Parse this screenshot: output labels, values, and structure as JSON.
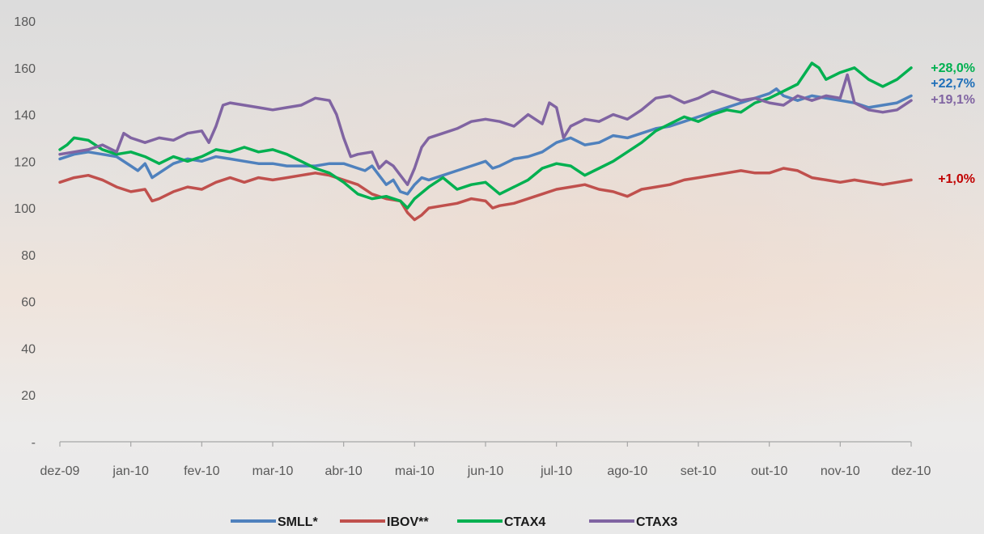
{
  "chart_data": {
    "type": "line",
    "x_labels": [
      "dez-09",
      "jan-10",
      "fev-10",
      "mar-10",
      "abr-10",
      "mai-10",
      "jun-10",
      "jul-10",
      "ago-10",
      "set-10",
      "out-10",
      "nov-10",
      "dez-10"
    ],
    "y_ticks": [
      "-",
      "20",
      "40",
      "60",
      "80",
      "100",
      "120",
      "140",
      "160",
      "180"
    ],
    "ylim": [
      0,
      180
    ],
    "grid": false,
    "legend_position": "bottom",
    "series": [
      {
        "name": "SMLL*",
        "color": "#4f81bd",
        "end_label": "+22,7%",
        "end_label_color": "#1f6fb8",
        "values": [
          [
            0,
            121
          ],
          [
            0.2,
            123
          ],
          [
            0.4,
            124
          ],
          [
            0.6,
            123
          ],
          [
            0.8,
            122
          ],
          [
            1.0,
            118
          ],
          [
            1.1,
            116
          ],
          [
            1.2,
            119
          ],
          [
            1.3,
            113
          ],
          [
            1.4,
            115
          ],
          [
            1.6,
            119
          ],
          [
            1.8,
            121
          ],
          [
            2.0,
            120
          ],
          [
            2.2,
            122
          ],
          [
            2.4,
            121
          ],
          [
            2.6,
            120
          ],
          [
            2.8,
            119
          ],
          [
            3.0,
            119
          ],
          [
            3.2,
            118
          ],
          [
            3.4,
            118
          ],
          [
            3.6,
            118
          ],
          [
            3.8,
            119
          ],
          [
            4.0,
            119
          ],
          [
            4.2,
            117
          ],
          [
            4.3,
            116
          ],
          [
            4.4,
            118
          ],
          [
            4.5,
            114
          ],
          [
            4.6,
            110
          ],
          [
            4.7,
            112
          ],
          [
            4.8,
            107
          ],
          [
            4.9,
            106
          ],
          [
            5.0,
            110
          ],
          [
            5.1,
            113
          ],
          [
            5.2,
            112
          ],
          [
            5.4,
            114
          ],
          [
            5.6,
            116
          ],
          [
            5.8,
            118
          ],
          [
            6.0,
            120
          ],
          [
            6.1,
            117
          ],
          [
            6.2,
            118
          ],
          [
            6.4,
            121
          ],
          [
            6.6,
            122
          ],
          [
            6.8,
            124
          ],
          [
            7.0,
            128
          ],
          [
            7.2,
            130
          ],
          [
            7.4,
            127
          ],
          [
            7.6,
            128
          ],
          [
            7.8,
            131
          ],
          [
            8.0,
            130
          ],
          [
            8.2,
            132
          ],
          [
            8.4,
            134
          ],
          [
            8.6,
            135
          ],
          [
            8.8,
            137
          ],
          [
            9.0,
            139
          ],
          [
            9.2,
            141
          ],
          [
            9.4,
            143
          ],
          [
            9.6,
            145
          ],
          [
            9.8,
            147
          ],
          [
            10.0,
            149
          ],
          [
            10.1,
            151
          ],
          [
            10.2,
            148
          ],
          [
            10.4,
            146
          ],
          [
            10.6,
            148
          ],
          [
            10.8,
            147
          ],
          [
            11.0,
            146
          ],
          [
            11.2,
            145
          ],
          [
            11.4,
            143
          ],
          [
            11.6,
            144
          ],
          [
            11.8,
            145
          ],
          [
            12.0,
            148
          ]
        ]
      },
      {
        "name": "IBOV**",
        "color": "#c0504d",
        "end_label": "+1,0%",
        "end_label_color": "#c00000",
        "values": [
          [
            0,
            111
          ],
          [
            0.2,
            113
          ],
          [
            0.4,
            114
          ],
          [
            0.6,
            112
          ],
          [
            0.8,
            109
          ],
          [
            1.0,
            107
          ],
          [
            1.2,
            108
          ],
          [
            1.3,
            103
          ],
          [
            1.4,
            104
          ],
          [
            1.6,
            107
          ],
          [
            1.8,
            109
          ],
          [
            2.0,
            108
          ],
          [
            2.2,
            111
          ],
          [
            2.4,
            113
          ],
          [
            2.6,
            111
          ],
          [
            2.8,
            113
          ],
          [
            3.0,
            112
          ],
          [
            3.2,
            113
          ],
          [
            3.4,
            114
          ],
          [
            3.6,
            115
          ],
          [
            3.8,
            114
          ],
          [
            4.0,
            112
          ],
          [
            4.2,
            110
          ],
          [
            4.4,
            106
          ],
          [
            4.6,
            104
          ],
          [
            4.8,
            103
          ],
          [
            4.9,
            98
          ],
          [
            5.0,
            95
          ],
          [
            5.1,
            97
          ],
          [
            5.2,
            100
          ],
          [
            5.4,
            101
          ],
          [
            5.6,
            102
          ],
          [
            5.8,
            104
          ],
          [
            6.0,
            103
          ],
          [
            6.1,
            100
          ],
          [
            6.2,
            101
          ],
          [
            6.4,
            102
          ],
          [
            6.6,
            104
          ],
          [
            6.8,
            106
          ],
          [
            7.0,
            108
          ],
          [
            7.2,
            109
          ],
          [
            7.4,
            110
          ],
          [
            7.6,
            108
          ],
          [
            7.8,
            107
          ],
          [
            8.0,
            105
          ],
          [
            8.2,
            108
          ],
          [
            8.4,
            109
          ],
          [
            8.6,
            110
          ],
          [
            8.8,
            112
          ],
          [
            9.0,
            113
          ],
          [
            9.2,
            114
          ],
          [
            9.4,
            115
          ],
          [
            9.6,
            116
          ],
          [
            9.8,
            115
          ],
          [
            10.0,
            115
          ],
          [
            10.2,
            117
          ],
          [
            10.4,
            116
          ],
          [
            10.6,
            113
          ],
          [
            10.8,
            112
          ],
          [
            11.0,
            111
          ],
          [
            11.2,
            112
          ],
          [
            11.4,
            111
          ],
          [
            11.6,
            110
          ],
          [
            11.8,
            111
          ],
          [
            12.0,
            112
          ]
        ]
      },
      {
        "name": "CTAX4",
        "color": "#00b050",
        "end_label": "+28,0%",
        "end_label_color": "#00b050",
        "values": [
          [
            0,
            125
          ],
          [
            0.1,
            127
          ],
          [
            0.2,
            130
          ],
          [
            0.4,
            129
          ],
          [
            0.6,
            125
          ],
          [
            0.8,
            123
          ],
          [
            1.0,
            124
          ],
          [
            1.2,
            122
          ],
          [
            1.4,
            119
          ],
          [
            1.6,
            122
          ],
          [
            1.8,
            120
          ],
          [
            2.0,
            122
          ],
          [
            2.2,
            125
          ],
          [
            2.4,
            124
          ],
          [
            2.6,
            126
          ],
          [
            2.8,
            124
          ],
          [
            3.0,
            125
          ],
          [
            3.2,
            123
          ],
          [
            3.4,
            120
          ],
          [
            3.6,
            117
          ],
          [
            3.8,
            115
          ],
          [
            4.0,
            111
          ],
          [
            4.2,
            106
          ],
          [
            4.4,
            104
          ],
          [
            4.6,
            105
          ],
          [
            4.8,
            103
          ],
          [
            4.9,
            100
          ],
          [
            5.0,
            104
          ],
          [
            5.2,
            109
          ],
          [
            5.4,
            113
          ],
          [
            5.6,
            108
          ],
          [
            5.8,
            110
          ],
          [
            6.0,
            111
          ],
          [
            6.2,
            106
          ],
          [
            6.4,
            109
          ],
          [
            6.6,
            112
          ],
          [
            6.8,
            117
          ],
          [
            7.0,
            119
          ],
          [
            7.2,
            118
          ],
          [
            7.4,
            114
          ],
          [
            7.6,
            117
          ],
          [
            7.8,
            120
          ],
          [
            8.0,
            124
          ],
          [
            8.2,
            128
          ],
          [
            8.4,
            133
          ],
          [
            8.6,
            136
          ],
          [
            8.8,
            139
          ],
          [
            9.0,
            137
          ],
          [
            9.2,
            140
          ],
          [
            9.4,
            142
          ],
          [
            9.6,
            141
          ],
          [
            9.8,
            145
          ],
          [
            10.0,
            147
          ],
          [
            10.2,
            150
          ],
          [
            10.4,
            153
          ],
          [
            10.6,
            162
          ],
          [
            10.7,
            160
          ],
          [
            10.8,
            155
          ],
          [
            11.0,
            158
          ],
          [
            11.2,
            160
          ],
          [
            11.4,
            155
          ],
          [
            11.6,
            152
          ],
          [
            11.8,
            155
          ],
          [
            12.0,
            160
          ]
        ]
      },
      {
        "name": "CTAX3",
        "color": "#8064a2",
        "end_label": "+19,1%",
        "end_label_color": "#8064a2",
        "values": [
          [
            0,
            123
          ],
          [
            0.2,
            124
          ],
          [
            0.4,
            125
          ],
          [
            0.6,
            127
          ],
          [
            0.8,
            124
          ],
          [
            0.9,
            132
          ],
          [
            1.0,
            130
          ],
          [
            1.2,
            128
          ],
          [
            1.4,
            130
          ],
          [
            1.6,
            129
          ],
          [
            1.8,
            132
          ],
          [
            2.0,
            133
          ],
          [
            2.1,
            128
          ],
          [
            2.2,
            135
          ],
          [
            2.3,
            144
          ],
          [
            2.4,
            145
          ],
          [
            2.6,
            144
          ],
          [
            2.8,
            143
          ],
          [
            3.0,
            142
          ],
          [
            3.2,
            143
          ],
          [
            3.4,
            144
          ],
          [
            3.6,
            147
          ],
          [
            3.8,
            146
          ],
          [
            3.9,
            140
          ],
          [
            4.0,
            130
          ],
          [
            4.1,
            122
          ],
          [
            4.2,
            123
          ],
          [
            4.4,
            124
          ],
          [
            4.5,
            117
          ],
          [
            4.6,
            120
          ],
          [
            4.7,
            118
          ],
          [
            4.8,
            114
          ],
          [
            4.9,
            110
          ],
          [
            5.0,
            117
          ],
          [
            5.1,
            126
          ],
          [
            5.2,
            130
          ],
          [
            5.4,
            132
          ],
          [
            5.6,
            134
          ],
          [
            5.8,
            137
          ],
          [
            6.0,
            138
          ],
          [
            6.2,
            137
          ],
          [
            6.4,
            135
          ],
          [
            6.6,
            140
          ],
          [
            6.8,
            136
          ],
          [
            6.9,
            145
          ],
          [
            7.0,
            143
          ],
          [
            7.1,
            130
          ],
          [
            7.2,
            135
          ],
          [
            7.4,
            138
          ],
          [
            7.6,
            137
          ],
          [
            7.8,
            140
          ],
          [
            8.0,
            138
          ],
          [
            8.2,
            142
          ],
          [
            8.4,
            147
          ],
          [
            8.6,
            148
          ],
          [
            8.8,
            145
          ],
          [
            9.0,
            147
          ],
          [
            9.2,
            150
          ],
          [
            9.4,
            148
          ],
          [
            9.6,
            146
          ],
          [
            9.8,
            147
          ],
          [
            10.0,
            145
          ],
          [
            10.2,
            144
          ],
          [
            10.4,
            148
          ],
          [
            10.6,
            146
          ],
          [
            10.8,
            148
          ],
          [
            11.0,
            147
          ],
          [
            11.1,
            157
          ],
          [
            11.2,
            145
          ],
          [
            11.4,
            142
          ],
          [
            11.6,
            141
          ],
          [
            11.8,
            142
          ],
          [
            12.0,
            146
          ]
        ]
      }
    ]
  }
}
